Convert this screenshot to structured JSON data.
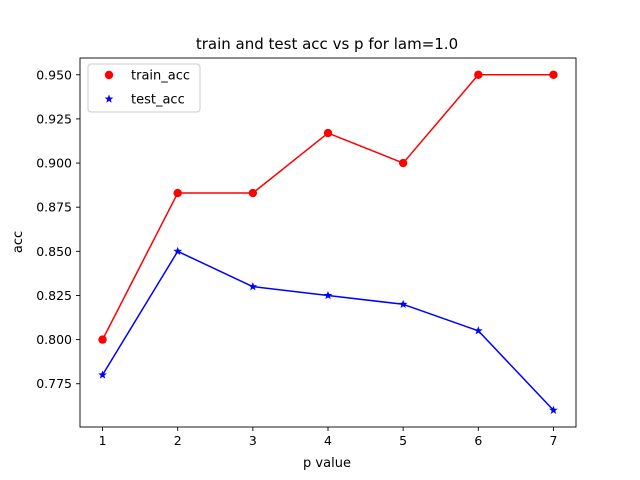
{
  "chart_data": {
    "type": "line",
    "title": "train and test acc vs p for lam=1.0",
    "xlabel": "p value",
    "ylabel": "acc",
    "x": [
      1,
      2,
      3,
      4,
      5,
      6,
      7
    ],
    "xlim": [
      0.7,
      7.3
    ],
    "ylim": [
      0.7505,
      0.9595
    ],
    "xticks": [
      "1",
      "2",
      "3",
      "4",
      "5",
      "6",
      "7"
    ],
    "yticks": [
      "0.775",
      "0.800",
      "0.825",
      "0.850",
      "0.875",
      "0.900",
      "0.925",
      "0.950"
    ],
    "grid": false,
    "legend_position": "upper-left",
    "series": [
      {
        "name": "train_acc",
        "values": [
          0.8,
          0.883,
          0.883,
          0.917,
          0.9,
          0.95,
          0.95
        ],
        "color": "#ff0000",
        "marker": "circle"
      },
      {
        "name": "test_acc",
        "values": [
          0.78,
          0.85,
          0.83,
          0.825,
          0.82,
          0.805,
          0.76
        ],
        "color": "#0000ff",
        "marker": "star"
      }
    ]
  }
}
